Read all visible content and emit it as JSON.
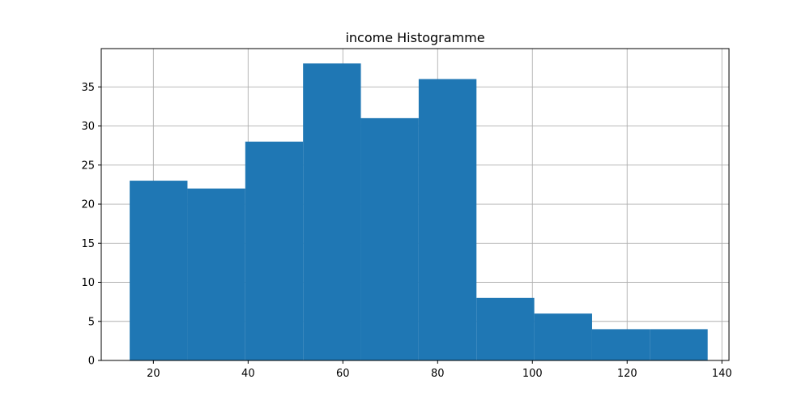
{
  "chart_data": {
    "type": "bar",
    "title": "income Histogramme",
    "xlabel": "",
    "ylabel": "",
    "xlim": [
      9,
      141.5
    ],
    "ylim": [
      0,
      39.9
    ],
    "xticks": [
      20,
      40,
      60,
      80,
      100,
      120,
      140
    ],
    "yticks": [
      0,
      5,
      10,
      15,
      20,
      25,
      30,
      35
    ],
    "bin_edges": [
      15,
      27.2,
      39.4,
      51.6,
      63.8,
      76.0,
      88.2,
      100.4,
      112.6,
      124.8,
      137
    ],
    "values": [
      23,
      22,
      28,
      38,
      31,
      36,
      8,
      6,
      4,
      4
    ],
    "bar_color": "#1f77b4",
    "grid": true
  }
}
